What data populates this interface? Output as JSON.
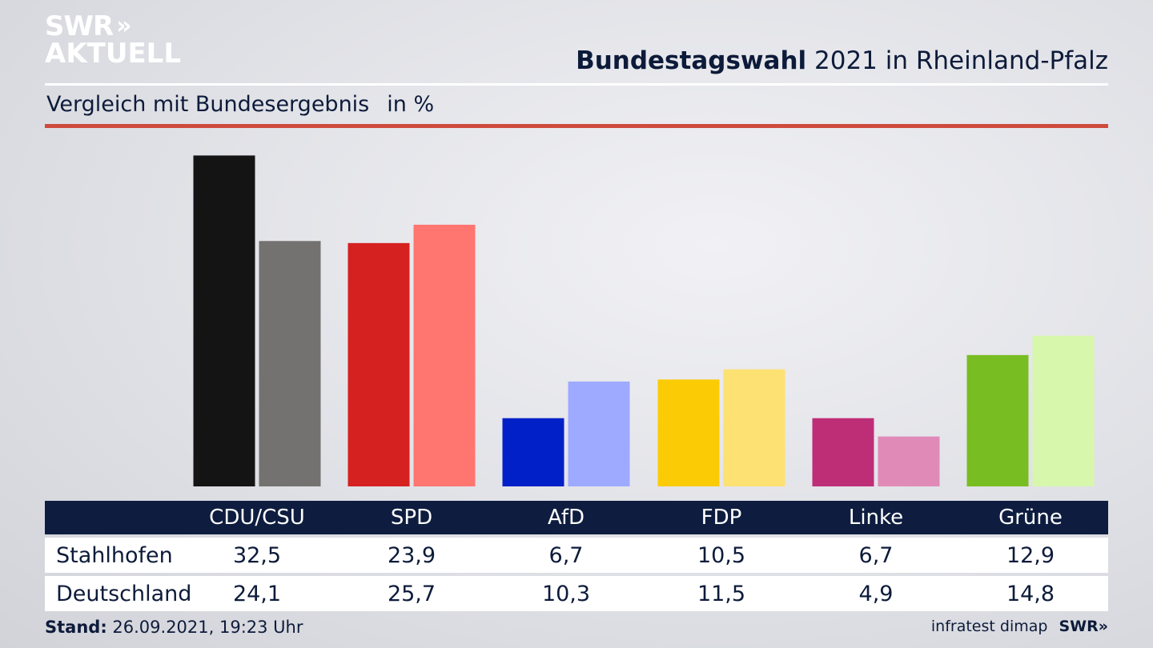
{
  "logo": {
    "line1": "SWR",
    "chevrons": "»",
    "line2": "AKTUELL"
  },
  "header": {
    "title_bold": "Bundestagswahl",
    "title_rest": " 2021 in Rheinland-Pfalz",
    "subtitle": "Vergleich mit Bundesergebnis",
    "unit": "in %"
  },
  "chart_data": {
    "type": "bar",
    "categories": [
      "CDU/CSU",
      "SPD",
      "AfD",
      "FDP",
      "Linke",
      "Grüne"
    ],
    "series": [
      {
        "name": "Stahlhofen",
        "values": [
          32.5,
          23.9,
          6.7,
          10.5,
          6.7,
          12.9
        ]
      },
      {
        "name": "Deutschland",
        "values": [
          24.1,
          25.7,
          10.3,
          11.5,
          4.9,
          14.8
        ]
      }
    ],
    "colors": {
      "Stahlhofen": [
        "#141414",
        "#d62121",
        "#0220c8",
        "#fbcb06",
        "#be2e77",
        "#78bd21"
      ],
      "Deutschland": [
        "#737270",
        "#ff7570",
        "#9eaaff",
        "#fde172",
        "#e08ab8",
        "#d7f7ac"
      ]
    },
    "ylim": [
      0,
      33
    ],
    "grid": false,
    "legend": "table-below"
  },
  "table": {
    "row_labels": [
      "Stahlhofen",
      "Deutschland"
    ],
    "formatted": [
      [
        "32,5",
        "23,9",
        "6,7",
        "10,5",
        "6,7",
        "12,9"
      ],
      [
        "24,1",
        "25,7",
        "10,3",
        "11,5",
        "4,9",
        "14,8"
      ]
    ]
  },
  "footer": {
    "stand_label": "Stand:",
    "stand_value": " 26.09.2021, 19:23 Uhr",
    "source": "infratest dimap",
    "brand": "SWR",
    "brand_chevrons": "»"
  }
}
